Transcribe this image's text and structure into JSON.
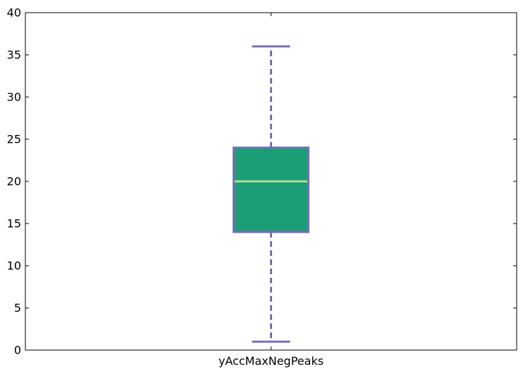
{
  "chart_data": {
    "type": "box",
    "categories": [
      "yAccMaxNegPeaks"
    ],
    "boxes": [
      {
        "category": "yAccMaxNegPeaks",
        "whisker_low": 1,
        "q1": 14,
        "median": 20,
        "q3": 24,
        "whisker_high": 36
      }
    ],
    "ylim": [
      0,
      40
    ],
    "yticks": [
      0,
      5,
      10,
      15,
      20,
      25,
      30,
      35,
      40
    ],
    "ytick_labels": [
      "0",
      "5",
      "10",
      "15",
      "20",
      "25",
      "30",
      "35",
      "40"
    ],
    "title": "",
    "xlabel": "",
    "ylabel": "",
    "grid": false,
    "colors": {
      "box_fill": "#1b9e77",
      "box_edge": "#7570b3",
      "median": "#b2df8a",
      "whisker": "#7570b3",
      "axes": "#000000"
    }
  }
}
